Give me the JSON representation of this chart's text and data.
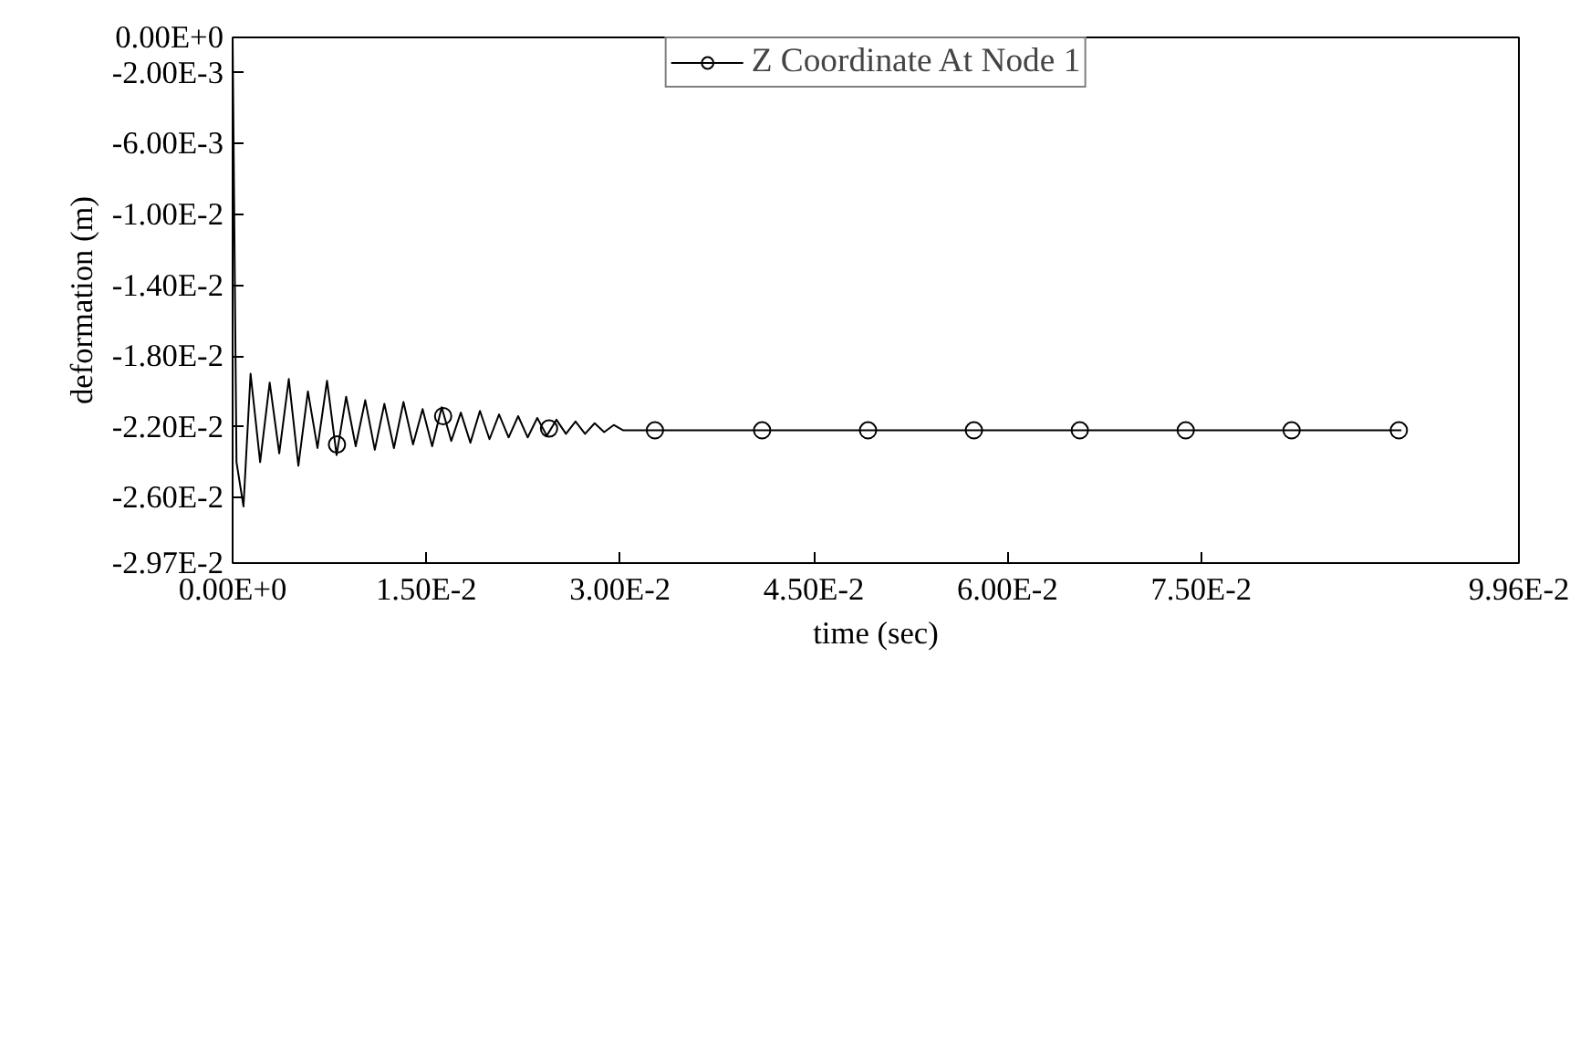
{
  "chart_data": {
    "type": "line",
    "xlabel": "time (sec)",
    "ylabel": "deformation (m)",
    "xlim": [
      0,
      0.0996
    ],
    "ylim": [
      -0.0297,
      0
    ],
    "xticks": [
      {
        "value": 0,
        "label": "0.00E+0"
      },
      {
        "value": 0.015,
        "label": "1.50E-2"
      },
      {
        "value": 0.03,
        "label": "3.00E-2"
      },
      {
        "value": 0.045,
        "label": "4.50E-2"
      },
      {
        "value": 0.06,
        "label": "6.00E-2"
      },
      {
        "value": 0.075,
        "label": "7.50E-2"
      },
      {
        "value": 0.0996,
        "label": "9.96E-2"
      }
    ],
    "yticks": [
      {
        "value": 0,
        "label": "0.00E+0"
      },
      {
        "value": -0.002,
        "label": "-2.00E-3"
      },
      {
        "value": -0.006,
        "label": "-6.00E-3"
      },
      {
        "value": -0.01,
        "label": "-1.00E-2"
      },
      {
        "value": -0.014,
        "label": "-1.40E-2"
      },
      {
        "value": -0.018,
        "label": "-1.80E-2"
      },
      {
        "value": -0.022,
        "label": "-2.20E-2"
      },
      {
        "value": -0.026,
        "label": "-2.60E-2"
      },
      {
        "value": -0.0297,
        "label": "-2.97E-2"
      }
    ],
    "grid": false,
    "legend": "top",
    "series": [
      {
        "name": "Z Coordinate At Node 1",
        "color": "#000000",
        "marker": "none",
        "x": [
          0,
          0.0003,
          0.00084,
          0.00139,
          0.00213,
          0.00287,
          0.00361,
          0.00435,
          0.00509,
          0.00583,
          0.00657,
          0.00731,
          0.00805,
          0.00879,
          0.00953,
          0.01027,
          0.01101,
          0.01175,
          0.01249,
          0.01323,
          0.01397,
          0.01471,
          0.01545,
          0.01619,
          0.01693,
          0.01767,
          0.01841,
          0.01915,
          0.01989,
          0.02063,
          0.02137,
          0.02211,
          0.02285,
          0.02359,
          0.02433,
          0.02507,
          0.02581,
          0.02655,
          0.02729,
          0.02803,
          0.02877,
          0.02951,
          0.03025,
          0.0905
        ],
        "values": [
          0,
          -0.024,
          -0.0265,
          -0.019,
          -0.024,
          -0.0195,
          -0.0235,
          -0.0193,
          -0.0242,
          -0.02,
          -0.0232,
          -0.0194,
          -0.0236,
          -0.0203,
          -0.0231,
          -0.0205,
          -0.0233,
          -0.0207,
          -0.0232,
          -0.0206,
          -0.023,
          -0.021,
          -0.0231,
          -0.0209,
          -0.0228,
          -0.0212,
          -0.0229,
          -0.0211,
          -0.0227,
          -0.0213,
          -0.0226,
          -0.0214,
          -0.0226,
          -0.0215,
          -0.0225,
          -0.0216,
          -0.0224,
          -0.0217,
          -0.0224,
          -0.0218,
          -0.0223,
          -0.0219,
          -0.0222,
          -0.0222
        ]
      },
      {
        "color": "#000000",
        "type": "scatter",
        "marker": "circle",
        "x": [
          0.00808,
          0.0163,
          0.0245,
          0.0327,
          0.041,
          0.0492,
          0.0574,
          0.0656,
          0.0738,
          0.082,
          0.0903
        ],
        "values": [
          -0.023,
          -0.0214,
          -0.0221,
          -0.0222,
          -0.0222,
          -0.0222,
          -0.0222,
          -0.0222,
          -0.0222,
          -0.0222,
          -0.0222
        ]
      }
    ]
  }
}
